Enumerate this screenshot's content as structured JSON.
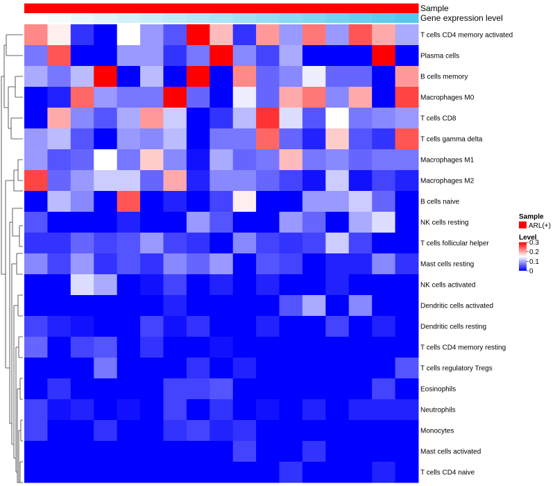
{
  "chart_data": {
    "type": "heatmap",
    "annotation_rows": [
      {
        "name": "Sample",
        "label": "Sample"
      },
      {
        "name": "gene-expression",
        "label": "Gene expression level"
      }
    ],
    "rows": [
      "T cells CD4 memory activated",
      "Plasma cells",
      "B cells memory",
      "Macrophages M0",
      "T cells CD8",
      "T cells gamma delta",
      "Macrophages M1",
      "Macrophages M2",
      "B cells naive",
      "NK cells resting",
      "T cells follicular helper",
      "Mast cells resting",
      "NK cells activated",
      "Dendritic cells activated",
      "Dendritic cells resting",
      "T cells CD4 memory resting",
      "T cells regulatory  Tregs",
      "Eosinophils",
      "Neutrophils",
      "Monocytes",
      "Mast cells activated",
      "T cells CD4 naive"
    ],
    "values": [
      [
        0.22,
        0.16,
        0.03,
        0.0,
        0.15,
        0.09,
        0.05,
        0.3,
        0.19,
        0.03,
        0.21,
        0.09,
        0.23,
        0.09,
        0.25,
        0.2,
        0.1
      ],
      [
        0.07,
        0.25,
        0.0,
        0.0,
        0.09,
        0.09,
        0.03,
        0.07,
        0.3,
        0.08,
        0.04,
        0.1,
        0.0,
        0.0,
        0.0,
        0.3,
        0.0
      ],
      [
        0.1,
        0.07,
        0.11,
        0.3,
        0.0,
        0.11,
        0.0,
        0.3,
        0.0,
        0.22,
        0.06,
        0.08,
        0.14,
        0.06,
        0.06,
        0.0,
        0.21
      ],
      [
        0.0,
        0.02,
        0.24,
        0.09,
        0.07,
        0.07,
        0.3,
        0.06,
        0.0,
        0.14,
        0.06,
        0.2,
        0.23,
        0.08,
        0.2,
        0.0,
        0.26
      ],
      [
        0.0,
        0.2,
        0.08,
        0.05,
        0.1,
        0.21,
        0.12,
        0.0,
        0.03,
        0.11,
        0.27,
        0.13,
        0.05,
        0.15,
        0.07,
        0.08,
        0.09
      ],
      [
        0.09,
        0.11,
        0.05,
        0.0,
        0.09,
        0.08,
        0.11,
        0.0,
        0.07,
        0.07,
        0.24,
        0.06,
        0.02,
        0.18,
        0.05,
        0.03,
        0.25
      ],
      [
        0.09,
        0.05,
        0.06,
        0.15,
        0.07,
        0.18,
        0.08,
        0.01,
        0.1,
        0.06,
        0.07,
        0.19,
        0.07,
        0.08,
        0.06,
        0.07,
        0.07
      ],
      [
        0.26,
        0.06,
        0.09,
        0.12,
        0.12,
        0.06,
        0.2,
        0.02,
        0.08,
        0.08,
        0.06,
        0.04,
        0.01,
        0.12,
        0.01,
        0.04,
        0.02
      ],
      [
        0.0,
        0.11,
        0.08,
        0.0,
        0.25,
        0.0,
        0.02,
        0.0,
        0.04,
        0.16,
        0.0,
        0.0,
        0.09,
        0.09,
        0.12,
        0.06,
        0.0
      ],
      [
        0.05,
        0.0,
        0.0,
        0.0,
        0.02,
        0.0,
        0.0,
        0.09,
        0.05,
        0.0,
        0.0,
        0.09,
        0.06,
        0.0,
        0.1,
        0.13,
        0.0
      ],
      [
        0.03,
        0.03,
        0.06,
        0.04,
        0.05,
        0.09,
        0.04,
        0.03,
        0.0,
        0.08,
        0.04,
        0.03,
        0.04,
        0.12,
        0.04,
        0.0,
        0.0
      ],
      [
        0.08,
        0.04,
        0.09,
        0.03,
        0.05,
        0.03,
        0.08,
        0.06,
        0.09,
        0.0,
        0.05,
        0.04,
        0.0,
        0.02,
        0.02,
        0.08,
        0.03
      ],
      [
        0.0,
        0.0,
        0.13,
        0.1,
        0.0,
        0.01,
        0.04,
        0.0,
        0.02,
        0.0,
        0.02,
        0.0,
        0.0,
        0.02,
        0.0,
        0.0,
        0.0
      ],
      [
        0.0,
        0.0,
        0.0,
        0.0,
        0.0,
        0.0,
        0.02,
        0.0,
        0.0,
        0.0,
        0.0,
        0.05,
        0.1,
        0.0,
        0.08,
        0.0,
        0.0
      ],
      [
        0.04,
        0.02,
        0.01,
        0.0,
        0.0,
        0.04,
        0.01,
        0.03,
        0.0,
        0.0,
        0.02,
        0.0,
        0.0,
        0.04,
        0.0,
        0.02,
        0.0
      ],
      [
        0.06,
        0.0,
        0.04,
        0.05,
        0.0,
        0.03,
        0.0,
        0.0,
        0.01,
        0.0,
        0.0,
        0.0,
        0.0,
        0.0,
        0.0,
        0.0,
        0.0
      ],
      [
        0.0,
        0.0,
        0.0,
        0.07,
        0.0,
        0.0,
        0.0,
        0.03,
        0.0,
        0.02,
        0.0,
        0.0,
        0.0,
        0.0,
        0.0,
        0.0,
        0.05
      ],
      [
        0.0,
        0.03,
        0.0,
        0.0,
        0.0,
        0.0,
        0.04,
        0.04,
        0.05,
        0.0,
        0.0,
        0.0,
        0.0,
        0.0,
        0.0,
        0.04,
        0.0
      ],
      [
        0.04,
        0.01,
        0.02,
        0.0,
        0.01,
        0.0,
        0.04,
        0.0,
        0.03,
        0.0,
        0.01,
        0.0,
        0.02,
        0.0,
        0.02,
        0.02,
        0.02
      ],
      [
        0.04,
        0.0,
        0.0,
        0.03,
        0.0,
        0.0,
        0.03,
        0.04,
        0.02,
        0.03,
        0.0,
        0.0,
        0.0,
        0.0,
        0.0,
        0.0,
        0.0
      ],
      [
        0.0,
        0.0,
        0.0,
        0.0,
        0.0,
        0.0,
        0.0,
        0.0,
        0.0,
        0.04,
        0.0,
        0.0,
        0.03,
        0.0,
        0.0,
        0.0,
        0.0
      ],
      [
        0.0,
        0.0,
        0.0,
        0.0,
        0.0,
        0.0,
        0.0,
        0.0,
        0.0,
        0.0,
        0.0,
        0.03,
        0.0,
        0.0,
        0.0,
        0.02,
        0.0
      ]
    ],
    "value_range": [
      0,
      0.3
    ],
    "color_scale": {
      "low": "#0000ff",
      "mid": "#ffffff",
      "high": "#ff0000",
      "mid_value": 0.15
    },
    "sample_color": "#ff0000",
    "gene_gradient": {
      "from": "#ffffff",
      "to": "#54c8ec"
    },
    "legend": {
      "sample_title": "Sample",
      "sample_item": "ARL(+)",
      "level_title": "Level",
      "ticks": [
        {
          "value": 0.3,
          "label": "0.3"
        },
        {
          "value": 0.2,
          "label": "0.2"
        },
        {
          "value": 0.1,
          "label": "0.1"
        },
        {
          "value": 0,
          "label": "0"
        }
      ]
    }
  }
}
